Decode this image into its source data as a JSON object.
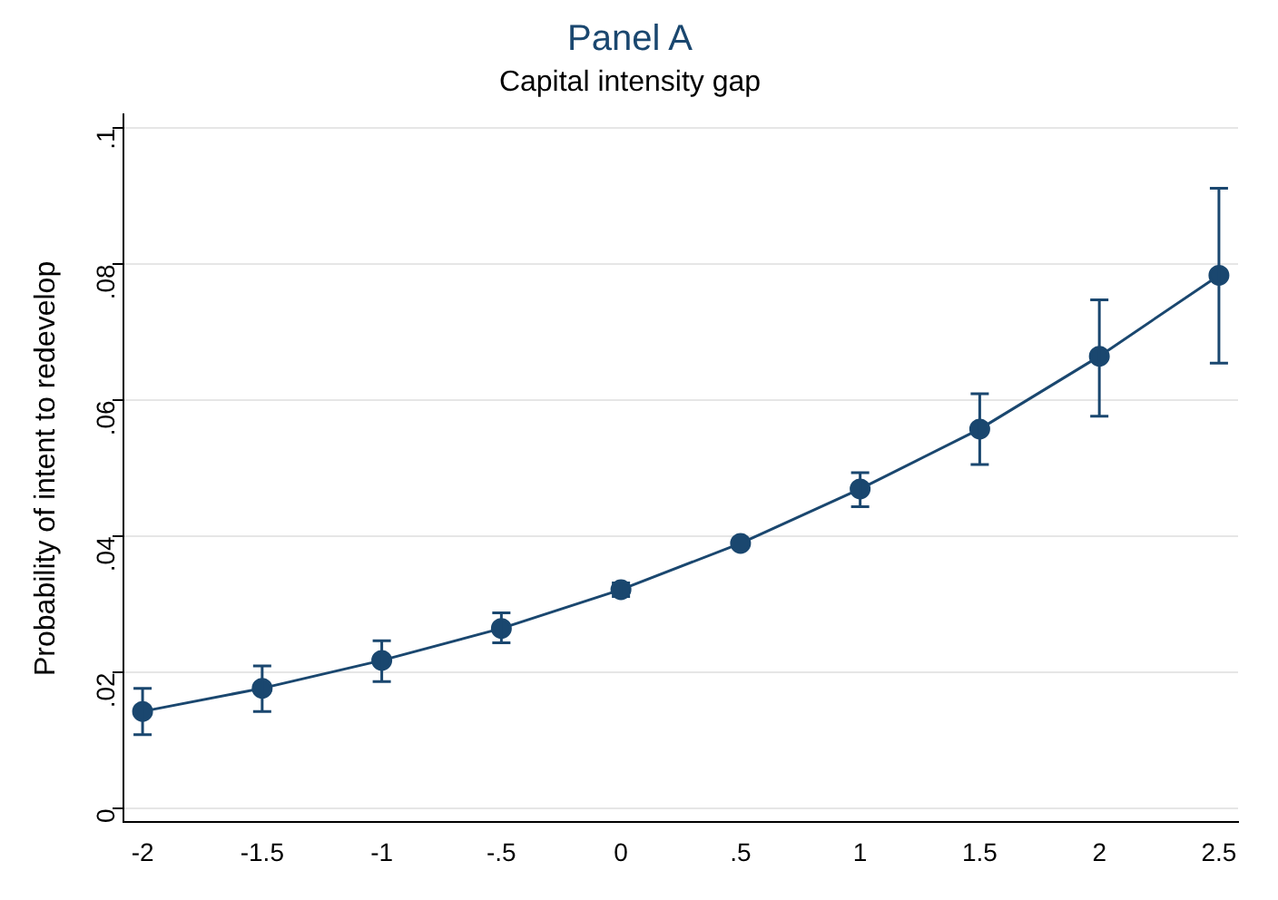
{
  "chart_data": {
    "type": "line",
    "title": "Panel A",
    "subtitle": "Capital intensity gap",
    "ylabel": "Probability of intent to redevelop",
    "x": [
      -2,
      -1.5,
      -1,
      -0.5,
      0,
      0.5,
      1,
      1.5,
      2,
      2.5
    ],
    "series": [
      {
        "color": "#1a476f",
        "values": [
          0.0143,
          0.0177,
          0.0218,
          0.0265,
          0.0322,
          0.039,
          0.047,
          0.0558,
          0.0665,
          0.0784
        ],
        "errors": [
          [
            0.0109,
            0.0177
          ],
          [
            0.0143,
            0.021
          ],
          [
            0.0187,
            0.0247
          ],
          [
            0.0244,
            0.0288
          ],
          [
            0.0312,
            0.0332
          ],
          null,
          [
            0.0444,
            0.0494
          ],
          [
            0.0506,
            0.061
          ],
          [
            0.0577,
            0.0748
          ],
          [
            0.0655,
            0.0912
          ]
        ]
      }
    ],
    "xlim": [
      -2.08,
      2.58
    ],
    "xticks": [
      -2,
      -1.5,
      -1,
      {
        "value": -0.5,
        "label": "-.5"
      },
      0,
      {
        "value": 0.5,
        "label": ".5"
      },
      1,
      1.5,
      2,
      2.5
    ],
    "ylim": [
      -0.002,
      0.102
    ],
    "yticks": [
      0,
      {
        "value": 0.02,
        "label": ".02"
      },
      {
        "value": 0.04,
        "label": ".04"
      },
      {
        "value": 0.06,
        "label": ".06"
      },
      {
        "value": 0.08,
        "label": ".08"
      },
      {
        "value": 0.1,
        "label": ".1"
      }
    ],
    "grid": "y",
    "marker": "circle",
    "line_style": "solid",
    "legend": false
  }
}
